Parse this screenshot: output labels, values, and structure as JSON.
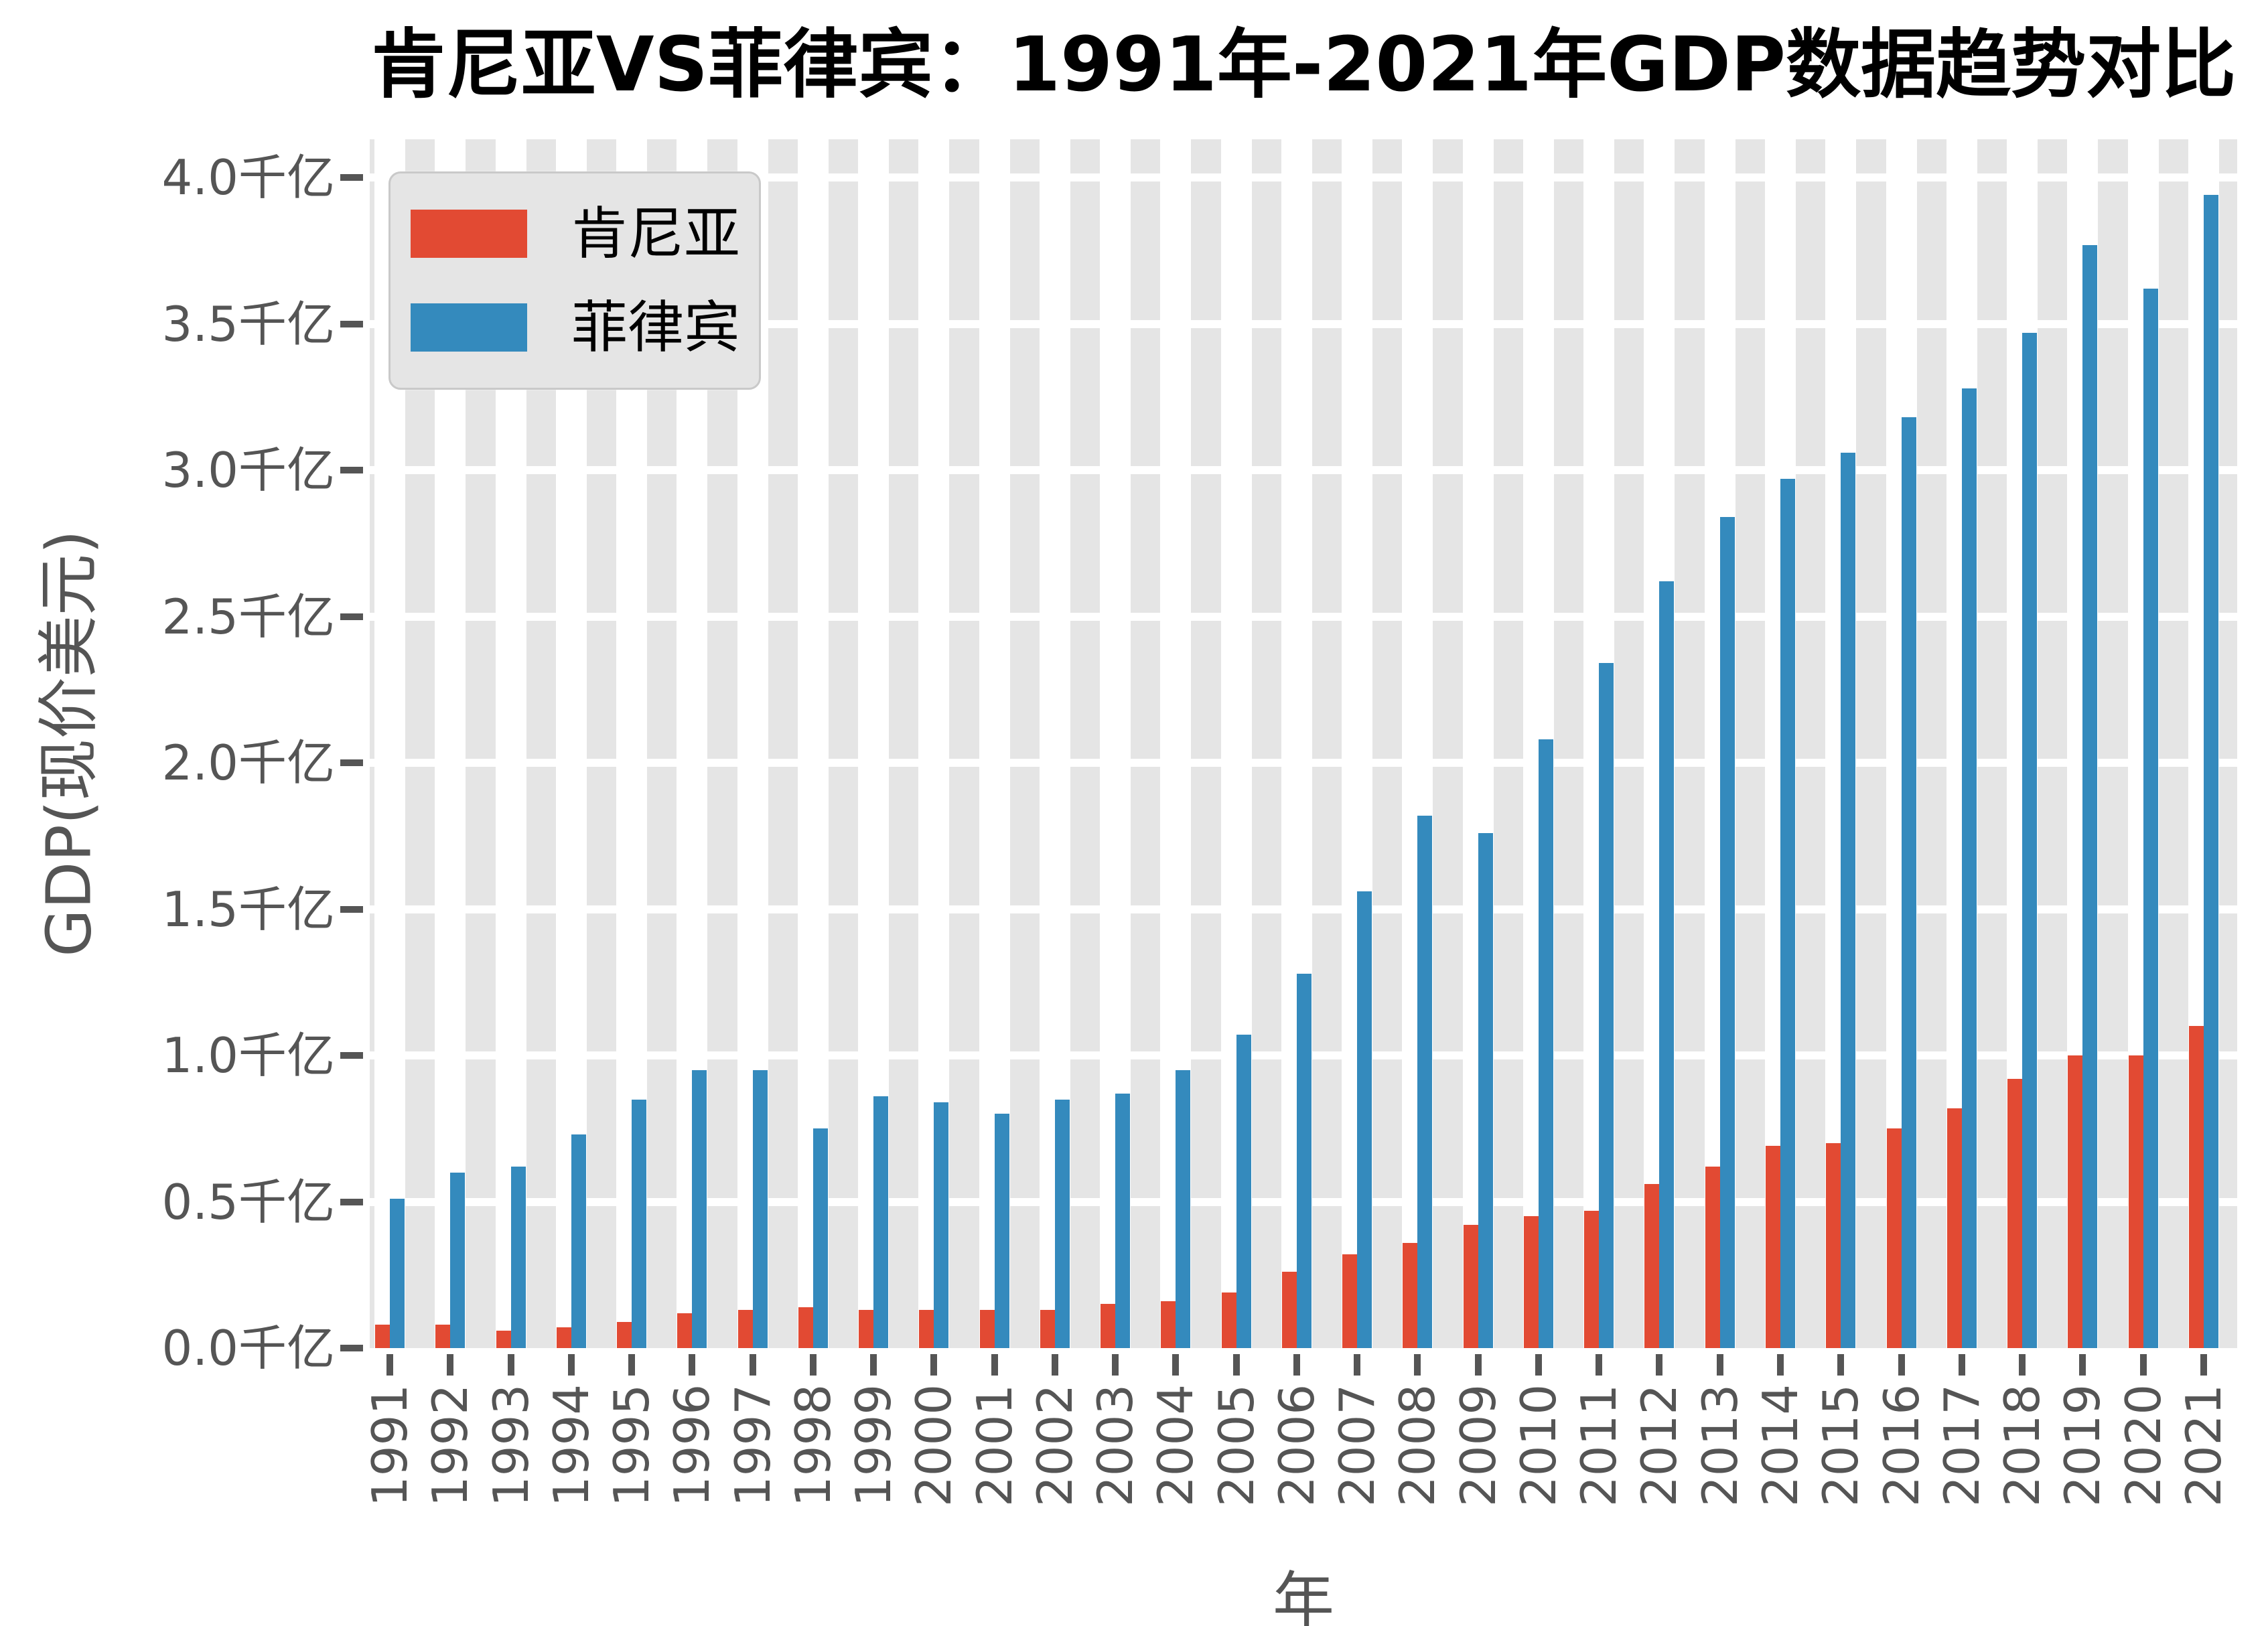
{
  "title": "肯尼亚VS菲律宾：1991年-2021年GDP数据趋势对比",
  "legend": {
    "items": [
      {
        "label": "肯尼亚",
        "color": "#E24A33"
      },
      {
        "label": "菲律宾",
        "color": "#348ABD"
      }
    ]
  },
  "axes": {
    "xlabel": "年",
    "ylabel": "GDP(现价美元)",
    "y_ticks": [
      {
        "value": 0.0,
        "label": "0.0千亿"
      },
      {
        "value": 0.5,
        "label": "0.5千亿"
      },
      {
        "value": 1.0,
        "label": "1.0千亿"
      },
      {
        "value": 1.5,
        "label": "1.5千亿"
      },
      {
        "value": 2.0,
        "label": "2.0千亿"
      },
      {
        "value": 2.5,
        "label": "2.5千亿"
      },
      {
        "value": 3.0,
        "label": "3.0千亿"
      },
      {
        "value": 3.5,
        "label": "3.5千亿"
      },
      {
        "value": 4.0,
        "label": "4.0千亿"
      }
    ]
  },
  "chart_data": {
    "type": "bar",
    "title": "肯尼亚VS菲律宾：1991年-2021年GDP数据趋势对比",
    "xlabel": "年",
    "ylabel": "GDP(现价美元)",
    "unit": "千亿 (现价美元)",
    "grid": true,
    "legend_position": "upper left",
    "plot_background": "#E5E5E5",
    "gridline_color": "#ffffff",
    "text_color": "#555555",
    "ylim": [
      0,
      4.13
    ],
    "categories": [
      "1991",
      "1992",
      "1993",
      "1994",
      "1995",
      "1996",
      "1997",
      "1998",
      "1999",
      "2000",
      "2001",
      "2002",
      "2003",
      "2004",
      "2005",
      "2006",
      "2007",
      "2008",
      "2009",
      "2010",
      "2011",
      "2012",
      "2013",
      "2014",
      "2015",
      "2016",
      "2017",
      "2018",
      "2019",
      "2020",
      "2021"
    ],
    "series": [
      {
        "name": "肯尼亚",
        "color": "#E24A33",
        "values": [
          0.08,
          0.08,
          0.06,
          0.07,
          0.09,
          0.12,
          0.13,
          0.14,
          0.13,
          0.13,
          0.13,
          0.13,
          0.15,
          0.16,
          0.19,
          0.26,
          0.32,
          0.36,
          0.42,
          0.45,
          0.47,
          0.56,
          0.62,
          0.69,
          0.7,
          0.75,
          0.82,
          0.92,
          1.0,
          1.0,
          1.1
        ]
      },
      {
        "name": "菲律宾",
        "color": "#348ABD",
        "values": [
          0.51,
          0.6,
          0.62,
          0.73,
          0.85,
          0.95,
          0.95,
          0.75,
          0.86,
          0.84,
          0.8,
          0.85,
          0.87,
          0.95,
          1.07,
          1.28,
          1.56,
          1.82,
          1.76,
          2.08,
          2.34,
          2.62,
          2.84,
          2.97,
          3.06,
          3.18,
          3.28,
          3.47,
          3.77,
          3.62,
          3.94
        ]
      }
    ]
  }
}
